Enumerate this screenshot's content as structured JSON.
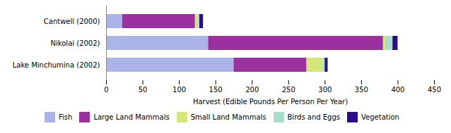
{
  "chart_data": {
    "type": "bar",
    "orientation": "horizontal",
    "stacked": true,
    "categories": [
      "Cantwell (2000)",
      "Nikolai (2002)",
      "Lake Minchumina (2002)"
    ],
    "series": [
      {
        "name": "Fish",
        "color": "#aab4e8",
        "values": [
          22,
          140,
          175
        ]
      },
      {
        "name": "Large Land Mammals",
        "color": "#9b30a0",
        "values": [
          100,
          240,
          100
        ]
      },
      {
        "name": "Small Land Mammals",
        "color": "#d4e87a",
        "values": [
          4,
          3,
          22
        ]
      },
      {
        "name": "Birds and Eggs",
        "color": "#a8ddd0",
        "values": [
          2,
          10,
          3
        ]
      },
      {
        "name": "Vegetation",
        "color": "#2d0d8a",
        "values": [
          5,
          7,
          4
        ]
      }
    ],
    "xlabel": "Harvest (Edible Pounds Per Person Per Year)",
    "xlim": [
      0,
      450
    ],
    "xticks": [
      0,
      50,
      100,
      150,
      200,
      250,
      300,
      350,
      400,
      450
    ],
    "grid": false,
    "legend": "bottom"
  }
}
